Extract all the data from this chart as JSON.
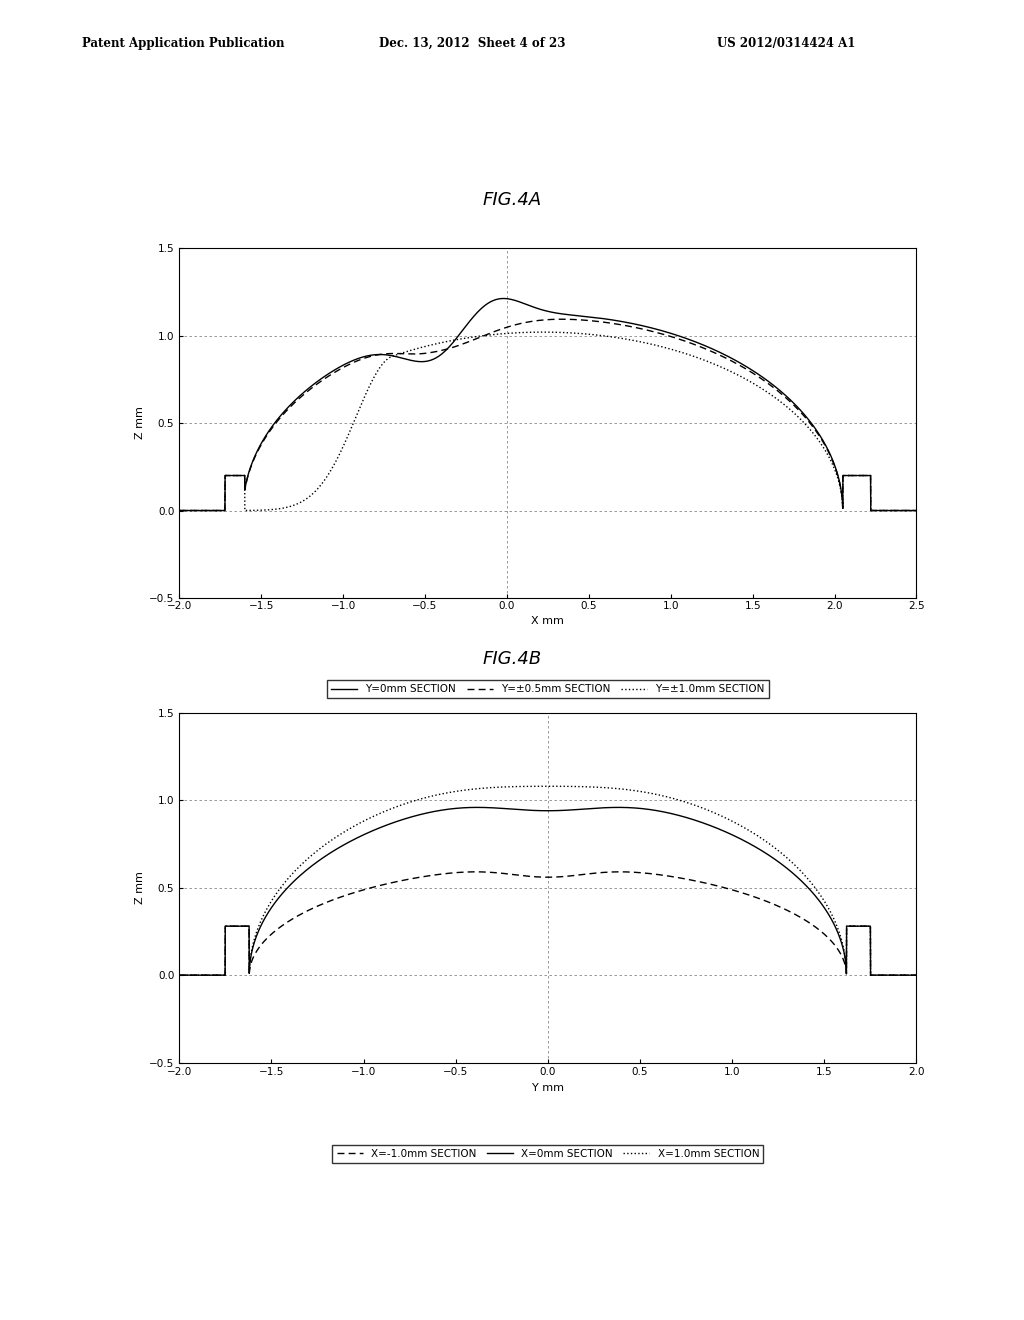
{
  "fig4a_title": "FIG.4A",
  "fig4b_title": "FIG.4B",
  "header_left": "Patent Application Publication",
  "header_mid": "Dec. 13, 2012  Sheet 4 of 23",
  "header_right": "US 2012/0314424 A1",
  "fig4a": {
    "xlabel": "X mm",
    "ylabel": "Z mm",
    "xlim": [
      -2.0,
      2.5
    ],
    "ylim": [
      -0.5,
      1.5
    ],
    "xticks": [
      -2.0,
      -1.5,
      -1.0,
      -0.5,
      0.0,
      0.5,
      1.0,
      1.5,
      2.0,
      2.5
    ],
    "yticks": [
      -0.5,
      0.0,
      0.5,
      1.0,
      1.5
    ],
    "legend": [
      "Y=0mm SECTION",
      "Y=±0.5mm SECTION",
      "Y=±1.0mm SECTION"
    ]
  },
  "fig4b": {
    "xlabel": "Y mm",
    "ylabel": "Z mm",
    "xlim": [
      -2.0,
      2.0
    ],
    "ylim": [
      -0.5,
      1.5
    ],
    "xticks": [
      -2.0,
      -1.5,
      -1.0,
      -0.5,
      0.0,
      0.5,
      1.0,
      1.5,
      2.0
    ],
    "yticks": [
      -0.5,
      0.0,
      0.5,
      1.0,
      1.5
    ],
    "legend": [
      "X=-1.0mm SECTION",
      "X=0mm SECTION",
      "X=1.0mm SECTION"
    ]
  },
  "background_color": "#ffffff",
  "text_color": "#000000"
}
